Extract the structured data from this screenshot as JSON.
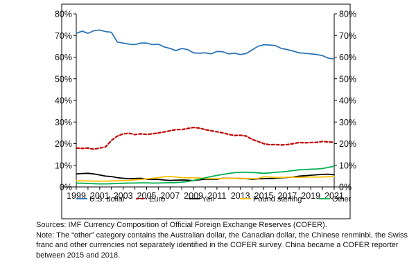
{
  "colors": {
    "usd": "#2e75b6",
    "euro": "#c00000",
    "yen": "#000000",
    "gbp": "#ffc000",
    "other": "#00b050",
    "frame": "#000000"
  },
  "chart_data": {
    "type": "line",
    "xlim": [
      1999,
      2021
    ],
    "ylim": [
      0,
      80
    ],
    "x_ticks": [
      "1999",
      "2001",
      "2003",
      "2005",
      "2007",
      "2009",
      "2011",
      "2013",
      "2015",
      "2017",
      "2019",
      "2021"
    ],
    "y_ticks_left": [
      "0%",
      "10%",
      "20%",
      "30%",
      "40%",
      "50%",
      "60%",
      "70%",
      "80%"
    ],
    "y_ticks_right": [
      "0%",
      "10%",
      "20%",
      "30%",
      "40%",
      "50%",
      "60%",
      "70%",
      "80%"
    ],
    "grid": false,
    "legend_position": "bottom",
    "series": [
      {
        "name": "U.S. dollar",
        "key": "usd",
        "style": "solid",
        "x": [
          1999,
          1999.5,
          2000,
          2000.5,
          2001,
          2001.5,
          2002,
          2002.5,
          2003,
          2003.5,
          2004,
          2004.5,
          2005,
          2005.5,
          2006,
          2006.5,
          2007,
          2007.5,
          2008,
          2008.5,
          2009,
          2009.5,
          2010,
          2010.5,
          2011,
          2011.5,
          2012,
          2012.5,
          2013,
          2013.5,
          2014,
          2014.5,
          2015,
          2015.5,
          2016,
          2016.5,
          2017,
          2017.5,
          2018,
          2018.5,
          2019,
          2019.5,
          2020,
          2020.5,
          2021
        ],
        "y": [
          71.0,
          72.0,
          71.0,
          72.2,
          72.5,
          71.8,
          71.5,
          67.0,
          66.5,
          66.0,
          65.8,
          66.5,
          66.5,
          65.8,
          66.0,
          64.7,
          64.0,
          63.0,
          64.0,
          63.5,
          62.0,
          61.8,
          62.0,
          61.5,
          62.6,
          62.5,
          61.5,
          61.8,
          61.2,
          61.7,
          63.3,
          65.0,
          65.7,
          65.6,
          65.3,
          64.0,
          63.5,
          62.8,
          62.0,
          61.8,
          61.5,
          61.2,
          60.7,
          59.5,
          59.2
        ]
      },
      {
        "name": "Euro",
        "key": "euro",
        "style": "dashed",
        "x": [
          1999,
          1999.5,
          2000,
          2000.5,
          2001,
          2001.5,
          2002,
          2002.5,
          2003,
          2003.5,
          2004,
          2004.5,
          2005,
          2005.5,
          2006,
          2006.5,
          2007,
          2007.5,
          2008,
          2008.5,
          2009,
          2009.5,
          2010,
          2010.5,
          2011,
          2011.5,
          2012,
          2012.5,
          2013,
          2013.5,
          2014,
          2014.5,
          2015,
          2015.5,
          2016,
          2016.5,
          2017,
          2017.5,
          2018,
          2018.5,
          2019,
          2019.5,
          2020,
          2020.5,
          2021
        ],
        "y": [
          18.0,
          17.8,
          18.0,
          17.4,
          18.0,
          18.5,
          21.5,
          23.5,
          24.5,
          24.8,
          24.2,
          24.5,
          24.3,
          24.5,
          25.0,
          25.4,
          26.0,
          26.5,
          26.5,
          27.0,
          27.5,
          27.2,
          26.5,
          26.0,
          25.5,
          25.0,
          24.3,
          23.8,
          23.9,
          23.5,
          22.0,
          21.0,
          20.0,
          19.5,
          19.6,
          19.4,
          19.6,
          20.0,
          20.5,
          20.4,
          20.5,
          20.6,
          21.0,
          20.8,
          20.6
        ]
      },
      {
        "name": "Yen",
        "key": "yen",
        "style": "solid",
        "x": [
          1999,
          1999.5,
          2000,
          2000.5,
          2001,
          2001.5,
          2002,
          2002.5,
          2003,
          2003.5,
          2004,
          2004.5,
          2005,
          2005.5,
          2006,
          2006.5,
          2007,
          2007.5,
          2008,
          2008.5,
          2009,
          2009.5,
          2010,
          2010.5,
          2011,
          2011.5,
          2012,
          2012.5,
          2013,
          2013.5,
          2014,
          2014.5,
          2015,
          2015.5,
          2016,
          2016.5,
          2017,
          2017.5,
          2018,
          2018.5,
          2019,
          2019.5,
          2020,
          2020.5,
          2021
        ],
        "y": [
          6.0,
          6.2,
          6.3,
          6.0,
          5.5,
          5.0,
          4.8,
          4.3,
          4.0,
          3.8,
          3.9,
          4.0,
          3.6,
          3.5,
          3.5,
          3.2,
          3.0,
          3.1,
          3.2,
          3.1,
          2.9,
          3.3,
          3.6,
          3.6,
          3.6,
          4.0,
          4.0,
          4.0,
          3.9,
          3.8,
          3.6,
          3.7,
          3.8,
          3.9,
          4.0,
          4.2,
          4.4,
          4.6,
          5.0,
          5.2,
          5.4,
          5.6,
          5.8,
          5.9,
          5.6
        ]
      },
      {
        "name": "Pound sterling",
        "key": "gbp",
        "style": "solid",
        "x": [
          1999,
          1999.5,
          2000,
          2000.5,
          2001,
          2001.5,
          2002,
          2002.5,
          2003,
          2003.5,
          2004,
          2004.5,
          2005,
          2005.5,
          2006,
          2006.5,
          2007,
          2007.5,
          2008,
          2008.5,
          2009,
          2009.5,
          2010,
          2010.5,
          2011,
          2011.5,
          2012,
          2012.5,
          2013,
          2013.5,
          2014,
          2014.5,
          2015,
          2015.5,
          2016,
          2016.5,
          2017,
          2017.5,
          2018,
          2018.5,
          2019,
          2019.5,
          2020,
          2020.5,
          2021
        ],
        "y": [
          2.9,
          2.8,
          2.8,
          2.7,
          2.7,
          2.7,
          2.8,
          2.8,
          2.9,
          3.0,
          3.3,
          3.5,
          3.7,
          4.0,
          4.3,
          4.7,
          4.8,
          4.6,
          4.3,
          4.2,
          4.2,
          4.1,
          3.9,
          3.8,
          3.8,
          3.9,
          4.0,
          4.0,
          4.0,
          3.9,
          3.8,
          3.9,
          4.7,
          4.6,
          4.4,
          4.4,
          4.5,
          4.5,
          4.4,
          4.5,
          4.6,
          4.5,
          4.6,
          4.7,
          4.8
        ]
      },
      {
        "name": "Other",
        "key": "other",
        "style": "solid",
        "x": [
          1999,
          1999.5,
          2000,
          2000.5,
          2001,
          2001.5,
          2002,
          2002.5,
          2003,
          2003.5,
          2004,
          2004.5,
          2005,
          2005.5,
          2006,
          2006.5,
          2007,
          2007.5,
          2008,
          2008.5,
          2009,
          2009.5,
          2010,
          2010.5,
          2011,
          2011.5,
          2012,
          2012.5,
          2013,
          2013.5,
          2014,
          2014.5,
          2015,
          2015.5,
          2016,
          2016.5,
          2017,
          2017.5,
          2018,
          2018.5,
          2019,
          2019.5,
          2020,
          2020.5,
          2021
        ],
        "y": [
          1.8,
          1.7,
          1.6,
          1.5,
          1.4,
          1.4,
          1.5,
          1.6,
          1.7,
          1.8,
          1.8,
          1.9,
          1.9,
          1.8,
          1.8,
          1.9,
          2.0,
          2.0,
          2.2,
          2.5,
          3.0,
          3.6,
          4.2,
          4.8,
          5.3,
          5.8,
          6.2,
          6.6,
          6.8,
          6.8,
          6.7,
          6.5,
          6.3,
          6.5,
          6.8,
          6.9,
          7.2,
          7.6,
          7.9,
          8.0,
          8.2,
          8.3,
          8.5,
          9.0,
          9.6
        ]
      }
    ]
  },
  "notes": {
    "sources": "Sources: IMF Currency Composition of Official Foreign Exchange Reserves (COFER).",
    "note_line1": "Note: The “other” category contains the Australian dollar, the Canadian dollar, the Chinese renminbi, the Swiss",
    "note_line2": "franc and other currencies not separately identified in the COFER survey. China became a COFER reporter",
    "note_line3": "between 2015 and 2018."
  }
}
